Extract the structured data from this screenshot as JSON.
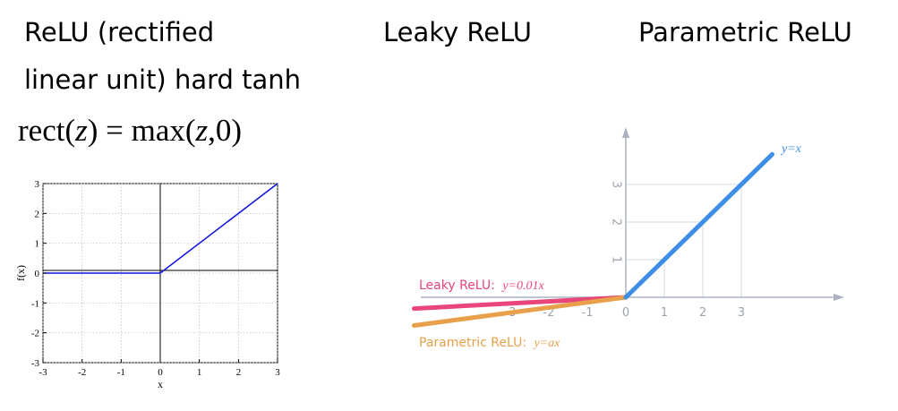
{
  "titles": {
    "relu_line1": "ReLU (rectified",
    "relu_line2": "linear unit) hard tanh",
    "leaky": "Leaky ReLU",
    "parametric": "Parametric ReLU"
  },
  "formula": {
    "rect": "rect(",
    "z1": "z",
    "eq": ") = max(",
    "z2": "z",
    "tail": ",0)"
  },
  "left_plot": {
    "xlabel": "x",
    "ylabel": "f(x)",
    "xticks": [
      "-3",
      "-2",
      "-1",
      "0",
      "1",
      "2",
      "3"
    ],
    "yticks": [
      "3",
      "2",
      "1",
      "0",
      "-1",
      "-2",
      "-3"
    ]
  },
  "right_plot": {
    "xticks": [
      "-3",
      "-2",
      "-1",
      "0",
      "1",
      "2",
      "3"
    ],
    "yticks": [
      "1",
      "2",
      "3"
    ],
    "line_label": "y=x",
    "leaky_label": "Leaky ReLU:",
    "leaky_eq": "y=0.01x",
    "param_label": "Parametric ReLU:",
    "param_eq": "y=ax",
    "colors": {
      "relu": "#3d8ee6",
      "leaky": "#e8457a",
      "param": "#e8a04a",
      "axis": "#aab3bd",
      "grid": "#d6dbe0"
    }
  },
  "chart_data": [
    {
      "type": "line",
      "title": "",
      "xlabel": "x",
      "ylabel": "f(x)",
      "xlim": [
        -3,
        3
      ],
      "ylim": [
        -3,
        3
      ],
      "grid": true,
      "series": [
        {
          "x": [
            -3,
            0,
            3
          ],
          "y": [
            0,
            0,
            3
          ]
        }
      ]
    },
    {
      "type": "line",
      "title": "",
      "xlim": [
        -3,
        3
      ],
      "ylim": [
        0,
        3
      ],
      "series": [
        {
          "name": "y=x",
          "x": [
            0,
            3.8
          ],
          "y": [
            0,
            3.8
          ]
        },
        {
          "name": "Leaky ReLU: y=0.01x",
          "x": [
            -5.5,
            0
          ],
          "y": [
            -0.3,
            0
          ]
        },
        {
          "name": "Parametric ReLU: y=ax",
          "x": [
            -5.5,
            0
          ],
          "y": [
            -0.75,
            0
          ]
        }
      ]
    }
  ]
}
